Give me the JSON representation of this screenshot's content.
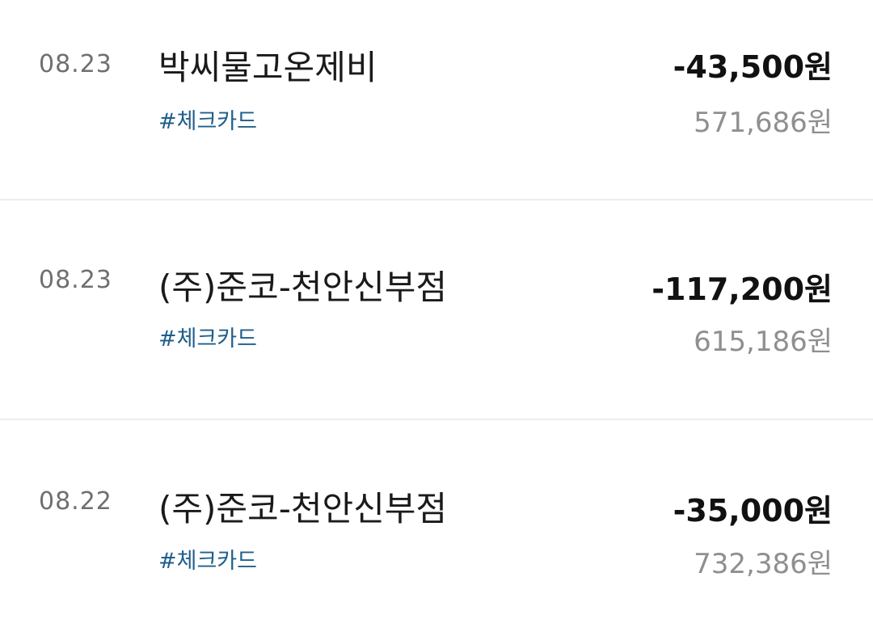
{
  "transactions": [
    {
      "date": "08.23",
      "merchant": "박씨물고온제비",
      "tag": "#체크카드",
      "amount": "-43,500원",
      "balance": "571,686원"
    },
    {
      "date": "08.23",
      "merchant": "(주)준코-천안신부점",
      "tag": "#체크카드",
      "amount": "-117,200원",
      "balance": "615,186원"
    },
    {
      "date": "08.22",
      "merchant": "(주)준코-천안신부점",
      "tag": "#체크카드",
      "amount": "-35,000원",
      "balance": "732,386원"
    }
  ]
}
